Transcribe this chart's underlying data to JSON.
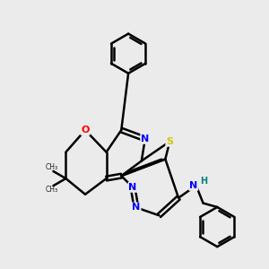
{
  "background_color": "#ebebeb",
  "atom_colors": {
    "N": "#0000ff",
    "O": "#ff0000",
    "S": "#cccc00",
    "C": "#000000",
    "H": "#008080"
  },
  "bond_color": "#000000",
  "bond_width": 1.8,
  "figsize": [
    3.0,
    3.0
  ],
  "dpi": 100
}
